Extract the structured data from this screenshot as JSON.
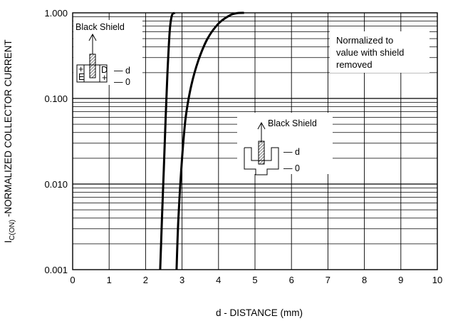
{
  "chart_data": {
    "type": "line",
    "title": "",
    "xlabel": "d - DISTANCE (mm)",
    "ylabel": {
      "main": "I",
      "sub": "C(ON)",
      "rest": " -NORMALIZED COLLECTOR CURRENT"
    },
    "xlim": [
      0,
      10
    ],
    "ylim": [
      0.001,
      1
    ],
    "yscale": "log",
    "grid": true,
    "xticks": [
      "0",
      "1",
      "2",
      "3",
      "4",
      "5",
      "6",
      "7",
      "8",
      "9",
      "10"
    ],
    "yticks": [
      {
        "value": 0.001,
        "label": "0.001"
      },
      {
        "value": 0.01,
        "label": "0.010"
      },
      {
        "value": 0.1,
        "label": "0.100"
      },
      {
        "value": 1,
        "label": "1.000"
      }
    ],
    "series": [
      {
        "x": [
          2.4,
          2.45,
          2.5,
          2.55,
          2.6,
          2.66,
          2.72,
          2.8
        ],
        "y": [
          0.001,
          0.004,
          0.015,
          0.06,
          0.2,
          0.6,
          0.93,
          1.0
        ]
      },
      {
        "x": [
          2.85,
          2.9,
          3.0,
          3.1,
          3.25,
          3.45,
          3.7,
          4.0,
          4.3,
          4.5,
          4.7
        ],
        "y": [
          0.001,
          0.004,
          0.02,
          0.06,
          0.14,
          0.28,
          0.5,
          0.75,
          0.93,
          0.99,
          1.0
        ]
      }
    ],
    "annotations": {
      "note_lines": [
        "Normalized to",
        "value with shield",
        "removed"
      ],
      "inset_top": {
        "label": "Black Shield",
        "d": "— d",
        "zero": "— 0",
        "left_symbols": [
          "+",
          "E"
        ],
        "right_symbols": [
          "D",
          "+"
        ]
      },
      "inset_mid": {
        "label": "Black Shield",
        "d": "— d",
        "zero": "— 0"
      }
    }
  }
}
